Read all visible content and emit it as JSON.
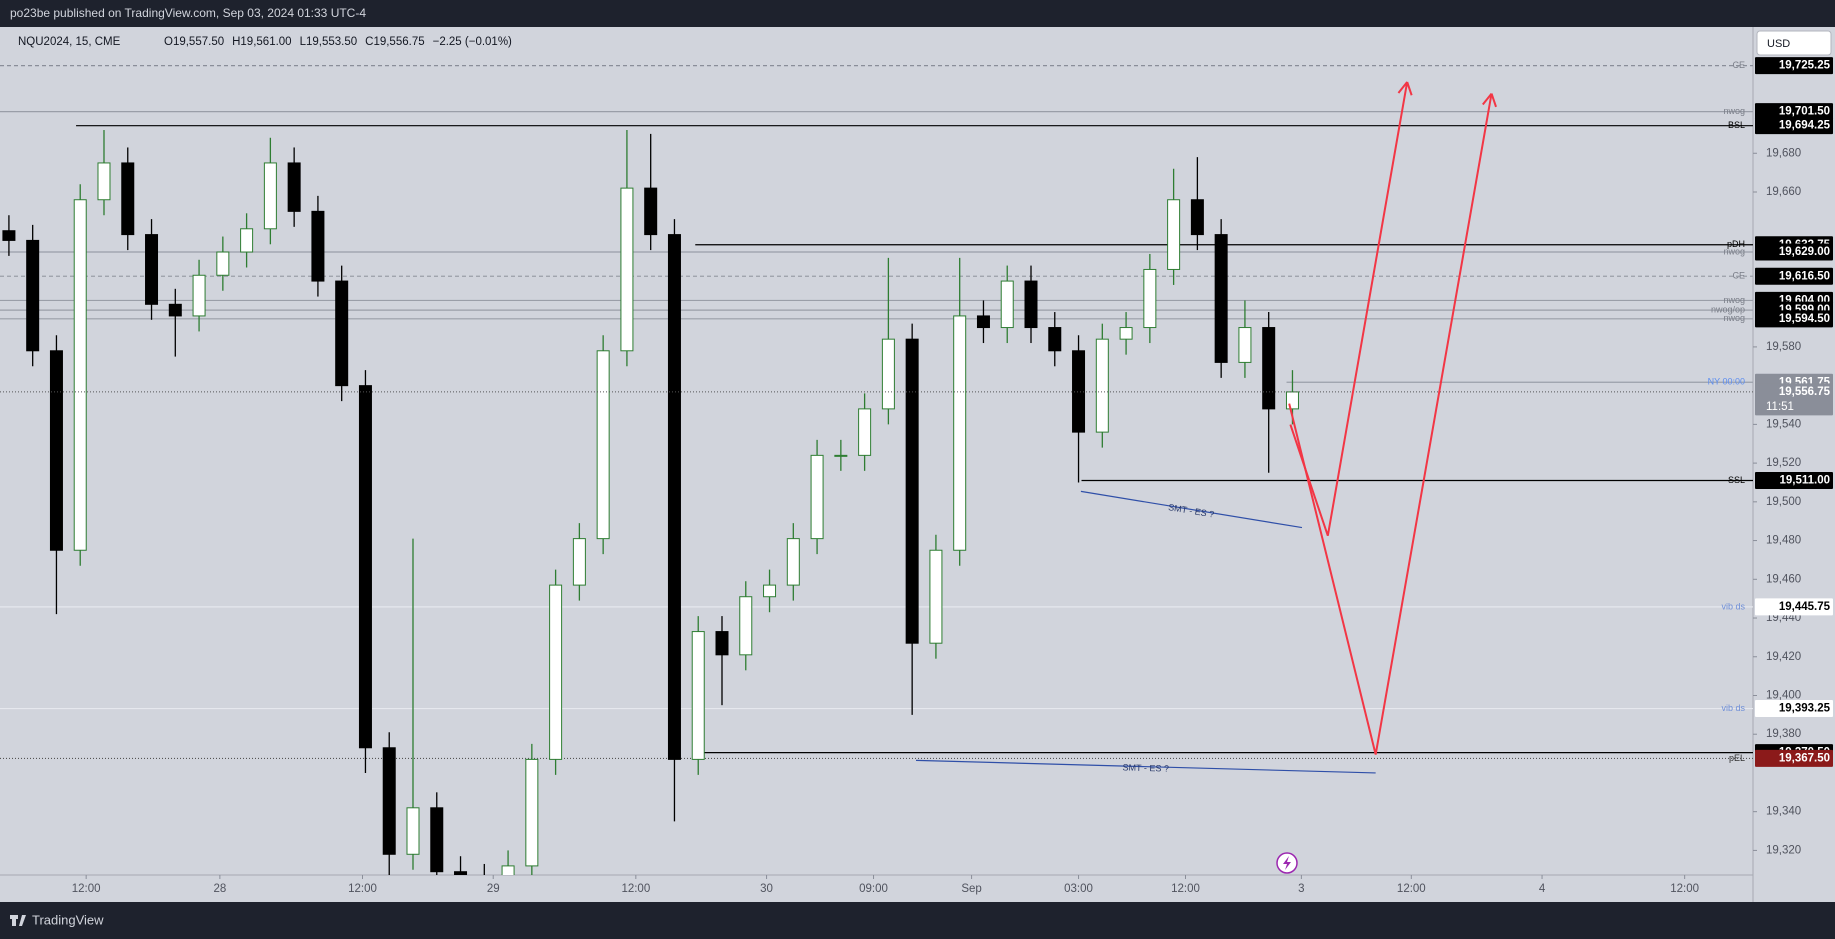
{
  "header": {
    "publisher": "po23be published on TradingView.com, Sep 03, 2024 01:33 UTC-4",
    "symbol": "NQU2024, 15, CME",
    "ohlc": [
      "O19,557.50",
      "H19,561.00",
      "L19,553.50",
      "C19,556.75",
      "−2.25 (−0.01%)"
    ],
    "currency": "USD"
  },
  "footer": {
    "brand": "TradingView"
  },
  "chart_data": {
    "type": "candlestick",
    "grid": false,
    "up_color": "#2e7d32",
    "down_color": "#000000",
    "xlim": [
      0,
      590
    ],
    "ylim": [
      19307.3,
      19745.2
    ],
    "xticks": [
      {
        "value": 29,
        "label": "12:00"
      },
      {
        "value": 74,
        "label": "28"
      },
      {
        "value": 122,
        "label": "12:00"
      },
      {
        "value": 166,
        "label": "29"
      },
      {
        "value": 214,
        "label": "12:00"
      },
      {
        "value": 258,
        "label": "30"
      },
      {
        "value": 294,
        "label": "09:00"
      },
      {
        "value": 327,
        "label": "Sep"
      },
      {
        "value": 363,
        "label": "03:00"
      },
      {
        "value": 399,
        "label": "12:00"
      },
      {
        "value": 438,
        "label": "3"
      },
      {
        "value": 475,
        "label": "12:00"
      },
      {
        "value": 519,
        "label": "4"
      },
      {
        "value": 567,
        "label": "12:00"
      }
    ],
    "yticks": [
      {
        "value": 19320,
        "label": "19,320"
      },
      {
        "value": 19340,
        "label": "19,340"
      },
      {
        "value": 19380,
        "label": "19,380"
      },
      {
        "value": 19400,
        "label": "19,400"
      },
      {
        "value": 19420,
        "label": "19,420"
      },
      {
        "value": 19440,
        "label": "19,440"
      },
      {
        "value": 19460,
        "label": "19,460"
      },
      {
        "value": 19480,
        "label": "19,480"
      },
      {
        "value": 19500,
        "label": "19,500"
      },
      {
        "value": 19520,
        "label": "19,520"
      },
      {
        "value": 19540,
        "label": "19,540"
      },
      {
        "value": 19580,
        "label": "19,580"
      },
      {
        "value": 19660,
        "label": "19,660"
      },
      {
        "value": 19680,
        "label": "19,680"
      }
    ],
    "candles": {
      "x": [
        3,
        11,
        19,
        27,
        35,
        43,
        51,
        59,
        67,
        75,
        83,
        91,
        99,
        107,
        115,
        123,
        131,
        139,
        147,
        155,
        163,
        171,
        179,
        187,
        195,
        203,
        211,
        219,
        227,
        235,
        243,
        251,
        259,
        267,
        275,
        283,
        291,
        299,
        307,
        315,
        323,
        331,
        339,
        347,
        355,
        363,
        371,
        379,
        387,
        395,
        403,
        411,
        419,
        427,
        435
      ],
      "open": [
        19640,
        19635,
        19578,
        19475,
        19656,
        19675,
        19638,
        19602,
        19596,
        19617,
        19629,
        19641,
        19675,
        19650,
        19614,
        19560,
        19373,
        19318,
        19342,
        19309,
        19305,
        19303,
        19312,
        19367,
        19457,
        19481,
        19578,
        19662,
        19638,
        19367,
        19433,
        19421,
        19451,
        19457,
        19481,
        19524,
        19524,
        19548,
        19584,
        19427,
        19475,
        19596,
        19590,
        19614,
        19590,
        19578,
        19536,
        19584,
        19590,
        19620,
        19656,
        19638,
        19572,
        19590,
        19548
      ],
      "high": [
        19648,
        19643,
        19586,
        19664,
        19692,
        19683,
        19646,
        19610,
        19625,
        19637,
        19649,
        19688,
        19683,
        19658,
        19622,
        19568,
        19381,
        19481,
        19350,
        19317,
        19313,
        19320,
        19375,
        19465,
        19489,
        19586,
        19692,
        19690,
        19646,
        19441,
        19441,
        19459,
        19465,
        19489,
        19532,
        19532,
        19556,
        19626,
        19592,
        19483,
        19626,
        19604,
        19622,
        19622,
        19598,
        19586,
        19592,
        19598,
        19628,
        19672,
        19678,
        19646,
        19604,
        19598,
        19568
      ],
      "low": [
        19627,
        19570,
        19442,
        19467,
        19648,
        19630,
        19594,
        19575,
        19588,
        19609,
        19621,
        19633,
        19642,
        19606,
        19552,
        19360,
        19300,
        19310,
        19300,
        19297,
        19295,
        19295,
        19304,
        19359,
        19449,
        19473,
        19570,
        19630,
        19335,
        19359,
        19395,
        19413,
        19443,
        19449,
        19473,
        19516,
        19516,
        19540,
        19390,
        19419,
        19467,
        19582,
        19582,
        19582,
        19570,
        19510,
        19528,
        19576,
        19582,
        19612,
        19630,
        19564,
        19564,
        19515,
        19540
      ],
      "close": [
        19635,
        19578,
        19475,
        19656,
        19675,
        19638,
        19602,
        19596,
        19617,
        19629,
        19641,
        19675,
        19650,
        19614,
        19560,
        19373,
        19318,
        19342,
        19309,
        19305,
        19303,
        19312,
        19367,
        19457,
        19481,
        19578,
        19662,
        19638,
        19367,
        19433,
        19421,
        19451,
        19457,
        19481,
        19524,
        19524,
        19548,
        19584,
        19427,
        19475,
        19596,
        19590,
        19614,
        19590,
        19578,
        19536,
        19584,
        19590,
        19620,
        19656,
        19638,
        19572,
        19590,
        19548,
        19556.75
      ]
    },
    "levels": [
      {
        "price": {
          "value": 19725.25,
          "label": "19,725.25"
        },
        "text": "CE",
        "style": "dashed",
        "color": "#8a8e99",
        "text_color": "#7a7e88",
        "from": 0,
        "box": "#000000",
        "box_text": "#ffffff"
      },
      {
        "price": {
          "value": 19701.5,
          "label": "19,701.50"
        },
        "text": "nwog",
        "style": "solid",
        "color": "#9a9ea8",
        "text_color": "#7a7e88",
        "from": 0,
        "box": "#000000",
        "box_text": "#ffffff"
      },
      {
        "price": {
          "value": 19694.25,
          "label": "19,694.25"
        },
        "text": "BSL",
        "style": "solid",
        "color": "#000000",
        "text_color": "#000000",
        "from": 25.6,
        "box": "#000000",
        "box_text": "#ffffff"
      },
      {
        "price": {
          "value": 19632.75,
          "label": "19,632.75"
        },
        "text": "pDH",
        "style": "solid",
        "color": "#000000",
        "text_color": "#000000",
        "from": 234,
        "box": "#000000",
        "box_text": "#ffffff"
      },
      {
        "price": {
          "value": 19629,
          "label": "19,629.00"
        },
        "text": "nwog",
        "style": "solid",
        "color": "#9a9ea8",
        "text_color": "#7a7e88",
        "from": 0,
        "box": "#000000",
        "box_text": "#ffffff"
      },
      {
        "price": {
          "value": 19616.5,
          "label": "19,616.50"
        },
        "text": "CE",
        "style": "dashed",
        "color": "#9a9ea8",
        "text_color": "#7a7e88",
        "from": 0,
        "box": "#000000",
        "box_text": "#ffffff"
      },
      {
        "price": {
          "value": 19604,
          "label": "19,604.00"
        },
        "text": "nwog",
        "style": "solid",
        "color": "#9a9ea8",
        "text_color": "#7a7e88",
        "from": 0,
        "box": "#000000",
        "box_text": "#ffffff"
      },
      {
        "price": {
          "value": 19599,
          "label": "19,599.00"
        },
        "text": "nwog/op",
        "style": "solid",
        "color": "#9a9ea8",
        "text_color": "#7a7e88",
        "from": 0,
        "box": "#000000",
        "box_text": "#ffffff"
      },
      {
        "price": {
          "value": 19594.5,
          "label": "19,594.50"
        },
        "text": "nwog",
        "style": "solid",
        "color": "#9a9ea8",
        "text_color": "#7a7e88",
        "from": 0,
        "box": "#000000",
        "box_text": "#ffffff"
      },
      {
        "price": {
          "value": 19561.75,
          "label": "19,561.75"
        },
        "text": "NY 00:00",
        "style": "solid",
        "color": "#9aa0aa",
        "text_color": "#5b8cf0",
        "from": 433,
        "box": "#8a8e99",
        "box_text": "#ffffff"
      },
      {
        "price": {
          "value": 19511,
          "label": "19,511.00"
        },
        "text": "SSL",
        "style": "solid",
        "color": "#000000",
        "text_color": "#000000",
        "from": 364,
        "box": "#000000",
        "box_text": "#ffffff"
      },
      {
        "price": {
          "value": 19445.75,
          "label": "19,445.75"
        },
        "text": "vib ds",
        "style": "solid",
        "color": "#e6e8ee",
        "text_color": "#6f8fd8",
        "from": 0,
        "box": "#ffffff",
        "box_text": "#000000"
      },
      {
        "price": {
          "value": 19393.25,
          "label": "19,393.25"
        },
        "text": "vib ds",
        "style": "solid",
        "color": "#e6e8ee",
        "text_color": "#6f8fd8",
        "from": 0,
        "box": "#ffffff",
        "box_text": "#000000"
      },
      {
        "price": {
          "value": 19370.5,
          "label": "19,370.50"
        },
        "style": "solid",
        "color": "#000000",
        "from": 234,
        "box": "#000000",
        "box_text": "#ffffff"
      },
      {
        "price": {
          "value": 19367.5,
          "label": "19,367.50"
        },
        "text": "pEL",
        "style": "dotted",
        "color": "#555555",
        "text_color": "#333333",
        "from": 0,
        "box": "#8b1a1a",
        "box_text": "#ffffff"
      }
    ],
    "last": {
      "price": {
        "value": 19556.75,
        "label": "19,556.75"
      },
      "countdown": "11:51",
      "color": "#555555",
      "box": "#8a8e99",
      "box_text": "#ffffff"
    },
    "drawings": [
      {
        "type": "trendline",
        "color": "#2f4fa8",
        "x": [
          363.8,
          438.2
        ],
        "y": [
          19505.4,
          19486.7
        ],
        "text": "SMT - ES ?"
      },
      {
        "type": "trendline",
        "color": "#2f4fa8",
        "x": [
          308.3,
          463
        ],
        "y": [
          19366.5,
          19360
        ],
        "text": "SMT - ES ?"
      },
      {
        "type": "arrow",
        "color": "#f23645",
        "x": [
          434.3,
          446.9,
          473.6
        ],
        "y": [
          19539.9,
          19482.5,
          19716.8
        ]
      },
      {
        "type": "arrow",
        "color": "#f23645",
        "x": [
          433.9,
          463,
          502
        ],
        "y": [
          19550.7,
          19369.5,
          19710.8
        ]
      }
    ]
  }
}
